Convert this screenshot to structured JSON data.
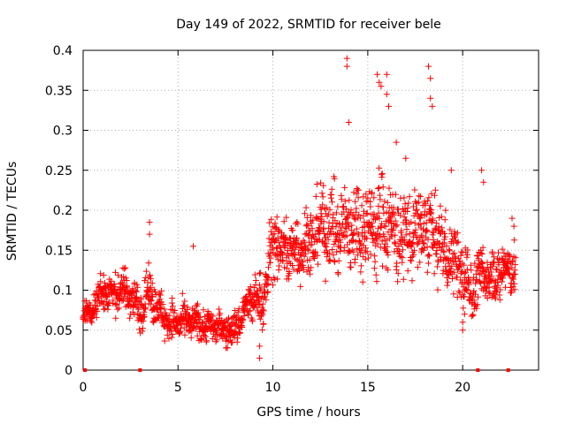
{
  "chart_data": {
    "type": "scatter",
    "title": "Day 149 of 2022, SRMTID for receiver bele",
    "xlabel": "GPS time / hours",
    "ylabel": "SRMTID / TECUs",
    "xlim": [
      0,
      24
    ],
    "ylim": [
      0,
      0.4
    ],
    "xticks": [
      0,
      5,
      10,
      15,
      20
    ],
    "yticks": [
      0,
      0.05,
      0.1,
      0.15,
      0.2,
      0.25,
      0.3,
      0.35,
      0.4
    ],
    "xtick_labels": [
      "0",
      "5",
      "10",
      "15",
      "20"
    ],
    "ytick_labels": [
      "0",
      "0.05",
      "0.1",
      "0.15",
      "0.2",
      "0.25",
      "0.3",
      "0.35",
      "0.4"
    ],
    "grid": true,
    "marker": "+",
    "color": "#ff0000",
    "zero_points_x": [
      0.1,
      3.0,
      20.8,
      22.4
    ],
    "trend": [
      [
        0.0,
        0.07
      ],
      [
        0.5,
        0.075
      ],
      [
        1.0,
        0.1
      ],
      [
        1.5,
        0.095
      ],
      [
        2.0,
        0.1
      ],
      [
        2.5,
        0.095
      ],
      [
        3.0,
        0.075
      ],
      [
        3.5,
        0.1
      ],
      [
        4.0,
        0.075
      ],
      [
        4.5,
        0.06
      ],
      [
        5.0,
        0.06
      ],
      [
        5.5,
        0.06
      ],
      [
        6.0,
        0.06
      ],
      [
        6.5,
        0.055
      ],
      [
        7.0,
        0.055
      ],
      [
        7.5,
        0.05
      ],
      [
        8.0,
        0.05
      ],
      [
        8.5,
        0.075
      ],
      [
        9.0,
        0.09
      ],
      [
        9.5,
        0.085
      ],
      [
        10.0,
        0.16
      ],
      [
        10.5,
        0.15
      ],
      [
        11.0,
        0.15
      ],
      [
        11.5,
        0.155
      ],
      [
        12.0,
        0.16
      ],
      [
        12.5,
        0.18
      ],
      [
        13.0,
        0.18
      ],
      [
        13.5,
        0.17
      ],
      [
        14.0,
        0.18
      ],
      [
        14.5,
        0.18
      ],
      [
        15.0,
        0.18
      ],
      [
        15.5,
        0.18
      ],
      [
        16.0,
        0.19
      ],
      [
        16.5,
        0.17
      ],
      [
        17.0,
        0.17
      ],
      [
        17.5,
        0.17
      ],
      [
        18.0,
        0.18
      ],
      [
        18.5,
        0.17
      ],
      [
        19.0,
        0.15
      ],
      [
        19.5,
        0.14
      ],
      [
        20.0,
        0.12
      ],
      [
        20.5,
        0.1
      ],
      [
        21.0,
        0.12
      ],
      [
        21.5,
        0.12
      ],
      [
        22.0,
        0.12
      ],
      [
        22.5,
        0.13
      ],
      [
        22.8,
        0.12
      ]
    ],
    "spread": [
      [
        0.0,
        0.02
      ],
      [
        1.0,
        0.025
      ],
      [
        2.0,
        0.03
      ],
      [
        3.0,
        0.03
      ],
      [
        4.0,
        0.03
      ],
      [
        5.0,
        0.025
      ],
      [
        6.0,
        0.025
      ],
      [
        7.0,
        0.02
      ],
      [
        8.0,
        0.025
      ],
      [
        9.0,
        0.03
      ],
      [
        10.0,
        0.05
      ],
      [
        11.0,
        0.05
      ],
      [
        12.0,
        0.05
      ],
      [
        13.0,
        0.06
      ],
      [
        14.0,
        0.06
      ],
      [
        15.0,
        0.07
      ],
      [
        16.0,
        0.07
      ],
      [
        17.0,
        0.06
      ],
      [
        18.0,
        0.06
      ],
      [
        19.0,
        0.05
      ],
      [
        20.0,
        0.05
      ],
      [
        21.0,
        0.04
      ],
      [
        22.0,
        0.04
      ],
      [
        22.8,
        0.04
      ]
    ],
    "highlights": [
      [
        3.5,
        0.185
      ],
      [
        3.5,
        0.17
      ],
      [
        5.8,
        0.155
      ],
      [
        9.3,
        0.015
      ],
      [
        9.3,
        0.03
      ],
      [
        13.9,
        0.39
      ],
      [
        13.9,
        0.38
      ],
      [
        14.0,
        0.31
      ],
      [
        15.5,
        0.37
      ],
      [
        15.6,
        0.36
      ],
      [
        15.7,
        0.355
      ],
      [
        16.0,
        0.37
      ],
      [
        16.0,
        0.345
      ],
      [
        16.1,
        0.33
      ],
      [
        16.5,
        0.285
      ],
      [
        17.0,
        0.265
      ],
      [
        18.2,
        0.38
      ],
      [
        18.3,
        0.365
      ],
      [
        18.3,
        0.34
      ],
      [
        18.4,
        0.33
      ],
      [
        19.4,
        0.25
      ],
      [
        20.0,
        0.05
      ],
      [
        20.0,
        0.06
      ],
      [
        20.1,
        0.07
      ],
      [
        21.0,
        0.25
      ],
      [
        21.1,
        0.235
      ],
      [
        22.6,
        0.19
      ],
      [
        22.7,
        0.18
      ]
    ]
  }
}
